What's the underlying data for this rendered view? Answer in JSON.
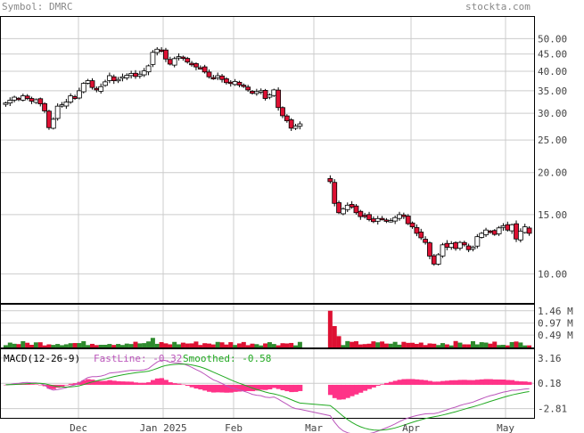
{
  "header": {
    "symbol_text": "Symbol: DMRC",
    "brand": "stockta.com"
  },
  "colors": {
    "up_candle": "#ffffff",
    "down_candle": "#dd1133",
    "grid": "#cccccc",
    "vol_up": "#2e8b2e",
    "vol_down": "#dd1133",
    "macd_fast": "#bb55bb",
    "macd_smooth": "#22aa22",
    "macd_hist": "#ff3388"
  },
  "chart_data": [
    {
      "type": "candlestick",
      "title": "",
      "x_tick_labels": [
        "Dec",
        "Jan 2025",
        "Feb",
        "Mar",
        "Apr",
        "May"
      ],
      "y_tick_labels": [
        "50.00",
        "45.00",
        "40.00",
        "35.00",
        "30.00",
        "25.00",
        "20.00",
        "15.00",
        "10.00"
      ],
      "y_ticks": [
        50,
        45,
        40,
        35,
        30,
        25,
        20,
        15,
        10
      ],
      "y_scale": "log",
      "ylim": [
        8.2,
        58
      ],
      "grid": true,
      "closes_approx": [
        32.2,
        32.8,
        33.5,
        33,
        33.8,
        33.2,
        32.6,
        32.9,
        32,
        30.5,
        27.2,
        28.8,
        31.5,
        31.8,
        32.4,
        33.8,
        33.2,
        35,
        36.8,
        37.5,
        35.8,
        35.2,
        36,
        37.2,
        38.8,
        37.5,
        37.8,
        38.5,
        38.9,
        39.4,
        38.6,
        39.2,
        40.1,
        41.5,
        45.5,
        46.5,
        46.2,
        43.5,
        42,
        43.6,
        44.2,
        43.8,
        42.6,
        41.8,
        41.2,
        40.9,
        39.8,
        38.5,
        38.2,
        38.8,
        37.8,
        37,
        36.8,
        37.3,
        36.4,
        36.2,
        35.2,
        34.4,
        34.8,
        35,
        33.2,
        34,
        35.2,
        31.2,
        29.5,
        28.5,
        27.1,
        27.5,
        27.9
      ],
      "closes_approx_part2": [
        18.8,
        16.2,
        15.2,
        15.6,
        16.0,
        15.8,
        15.2,
        14.8,
        14.9,
        14.5,
        14.3,
        14.6,
        14.6,
        14.4,
        14.4,
        14.7,
        15.0,
        14.8,
        14.1,
        13.8,
        13.2,
        12.8,
        12.4,
        11.3,
        10.7,
        11.4,
        12.2,
        12.0,
        12.3,
        11.9,
        12.4,
        12.2,
        11.8,
        12.0,
        12.9,
        13.2,
        13.5,
        13.4,
        13.1,
        13.7,
        13.9,
        13.5,
        14.0,
        12.7,
        13.4,
        13.8,
        13.2
      ],
      "volume_tick_labels": [
        "1.46 M",
        "0.97 M",
        "0.49 M"
      ],
      "volume_ticks_millions": [
        1.46,
        0.97,
        0.49
      ],
      "macd": {
        "title_text": "MACD(12-26-9)",
        "fastline_text": "FastLine: -0.32",
        "smoothed_text": "Smoothed: -0.58",
        "fastline_value": -0.32,
        "smoothed_value": -0.58,
        "y_tick_labels": [
          "3.16",
          "0.18",
          "-2.81"
        ],
        "y_ticks": [
          3.16,
          0.18,
          -2.81
        ]
      }
    }
  ]
}
